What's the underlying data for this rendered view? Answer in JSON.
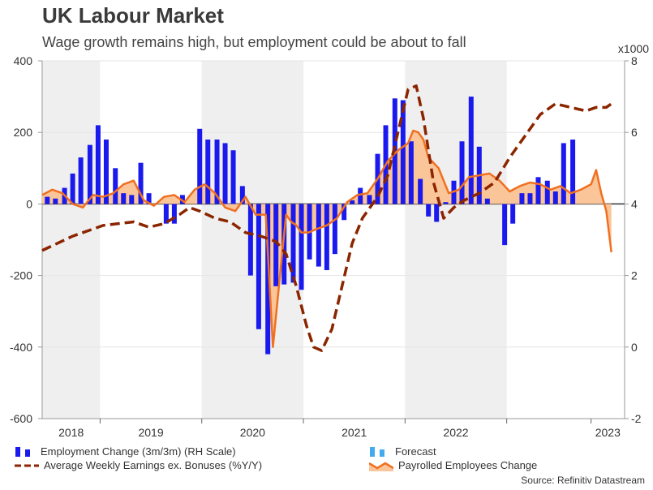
{
  "title": "UK Labour Market",
  "subtitle": "Wage growth remains high, but employment could be about to fall",
  "source": "Source: Refinitiv Datastream",
  "chart_data": {
    "type": "bar+line+area",
    "left_axis": {
      "min": -600,
      "max": 400,
      "ticks": [
        "400",
        "200",
        "0",
        "-200",
        "-400",
        "-600"
      ],
      "tick_values": [
        400,
        200,
        0,
        -200,
        -400,
        -600
      ]
    },
    "right_axis": {
      "min": -2,
      "max": 8,
      "unit_label": "x1000",
      "ticks": [
        "8",
        "6",
        "4",
        "2",
        "0",
        "-2"
      ],
      "tick_values": [
        8,
        6,
        4,
        2,
        0,
        -2
      ]
    },
    "x_axis": {
      "start": 2017.6,
      "end": 2023.33,
      "years": [
        "2018",
        "2019",
        "2020",
        "2021",
        "2022",
        "2023"
      ],
      "year_centers": [
        2018.0,
        2019.0,
        2020.0,
        2021.0,
        2022.0,
        2023.0
      ],
      "shaded_spans": [
        [
          2017.6,
          2018.17
        ],
        [
          2019.17,
          2020.17
        ],
        [
          2021.17,
          2022.17
        ]
      ]
    },
    "series": [
      {
        "name": "Employment Change (3m/3m) (RH Scale)",
        "type": "bar",
        "color": "#1a1aee",
        "t": [
          2017.65,
          2017.73,
          2017.82,
          2017.9,
          2017.98,
          2018.07,
          2018.15,
          2018.23,
          2018.32,
          2018.4,
          2018.48,
          2018.57,
          2018.65,
          2018.73,
          2018.82,
          2018.9,
          2018.98,
          2019.07,
          2019.15,
          2019.23,
          2019.32,
          2019.4,
          2019.48,
          2019.57,
          2019.65,
          2019.73,
          2019.82,
          2019.9,
          2019.98,
          2020.07,
          2020.15,
          2020.23,
          2020.32,
          2020.4,
          2020.48,
          2020.57,
          2020.65,
          2020.73,
          2020.82,
          2020.9,
          2020.98,
          2021.07,
          2021.15,
          2021.23,
          2021.32,
          2021.4,
          2021.48,
          2021.57,
          2021.65,
          2021.73,
          2021.82,
          2021.9,
          2021.98,
          2022.07,
          2022.15,
          2022.23,
          2022.32,
          2022.4,
          2022.48,
          2022.57,
          2022.65,
          2022.73,
          2022.82,
          2022.9,
          2022.98,
          2023.07,
          2023.15
        ],
        "values": [
          20,
          15,
          45,
          85,
          130,
          165,
          220,
          180,
          100,
          30,
          25,
          115,
          30,
          0,
          -55,
          -55,
          25,
          0,
          210,
          180,
          180,
          170,
          150,
          50,
          -200,
          -350,
          -420,
          -230,
          -225,
          -220,
          -240,
          -155,
          -175,
          -185,
          -140,
          -45,
          10,
          45,
          25,
          140,
          220,
          295,
          290,
          175,
          70,
          -35,
          -50,
          5,
          65,
          175,
          300,
          160,
          15,
          0,
          -115,
          -55,
          30,
          30,
          75,
          65,
          35,
          170,
          180,
          0,
          0,
          0,
          0
        ]
      },
      {
        "name": "Forecast",
        "type": "bar",
        "color": "#44aaee",
        "t": [],
        "values": []
      },
      {
        "name": "Average Weekly Earnings ex. Bonuses (%Y/Y)",
        "type": "line",
        "axis": "right",
        "color": "#8b2500",
        "t": [
          2017.6,
          2017.75,
          2017.9,
          2018.05,
          2018.2,
          2018.35,
          2018.5,
          2018.65,
          2018.8,
          2018.95,
          2019.05,
          2019.15,
          2019.3,
          2019.45,
          2019.6,
          2019.75,
          2019.9,
          2020.0,
          2020.1,
          2020.2,
          2020.27,
          2020.35,
          2020.45,
          2020.55,
          2020.65,
          2020.75,
          2020.9,
          2021.0,
          2021.1,
          2021.2,
          2021.28,
          2021.35,
          2021.45,
          2021.55,
          2021.65,
          2021.75,
          2021.9,
          2022.05,
          2022.2,
          2022.35,
          2022.5,
          2022.65,
          2022.8,
          2022.95,
          2023.05,
          2023.15,
          2023.2
        ],
        "values": [
          2.7,
          2.9,
          3.1,
          3.25,
          3.4,
          3.45,
          3.5,
          3.35,
          3.45,
          3.7,
          3.9,
          3.8,
          3.6,
          3.5,
          3.2,
          3.1,
          2.95,
          2.6,
          1.7,
          0.6,
          0.0,
          -0.1,
          0.5,
          1.7,
          2.9,
          3.6,
          4.2,
          4.8,
          6.0,
          7.2,
          7.3,
          6.4,
          4.6,
          3.6,
          3.9,
          4.1,
          4.3,
          4.6,
          5.3,
          5.9,
          6.5,
          6.8,
          6.7,
          6.6,
          6.7,
          6.7,
          6.8
        ]
      },
      {
        "name": "Payrolled Employees Change",
        "type": "area",
        "color": "#f07020",
        "fill": "#fbc59a",
        "t": [
          2017.6,
          2017.7,
          2017.8,
          2017.9,
          2018.0,
          2018.1,
          2018.2,
          2018.3,
          2018.4,
          2018.5,
          2018.6,
          2018.7,
          2018.8,
          2018.9,
          2019.0,
          2019.1,
          2019.2,
          2019.3,
          2019.4,
          2019.5,
          2019.6,
          2019.7,
          2019.8,
          2019.87,
          2019.95,
          2020.0,
          2020.05,
          2020.1,
          2020.15,
          2020.22,
          2020.3,
          2020.4,
          2020.5,
          2020.6,
          2020.7,
          2020.8,
          2020.9,
          2021.0,
          2021.1,
          2021.2,
          2021.25,
          2021.3,
          2021.35,
          2021.4,
          2021.5,
          2021.6,
          2021.7,
          2021.8,
          2021.9,
          2022.0,
          2022.1,
          2022.2,
          2022.3,
          2022.4,
          2022.5,
          2022.6,
          2022.7,
          2022.8,
          2022.9,
          2023.0,
          2023.05,
          2023.1,
          2023.15,
          2023.2
        ],
        "values": [
          25,
          40,
          30,
          0,
          -10,
          25,
          20,
          30,
          55,
          65,
          10,
          -5,
          20,
          25,
          5,
          40,
          55,
          30,
          -10,
          -20,
          20,
          -30,
          -30,
          -400,
          -170,
          -30,
          -50,
          -60,
          -80,
          -80,
          -70,
          -60,
          -40,
          5,
          25,
          30,
          70,
          120,
          150,
          170,
          205,
          200,
          180,
          130,
          100,
          30,
          40,
          75,
          80,
          85,
          65,
          35,
          50,
          60,
          55,
          40,
          50,
          30,
          40,
          55,
          95,
          30,
          -20,
          -135
        ]
      }
    ]
  },
  "legend": {
    "employment": "Employment Change (3m/3m) (RH Scale)",
    "forecast": "Forecast",
    "earnings": "Average Weekly Earnings ex. Bonuses (%Y/Y)",
    "payrolled": "Payrolled Employees Change"
  }
}
